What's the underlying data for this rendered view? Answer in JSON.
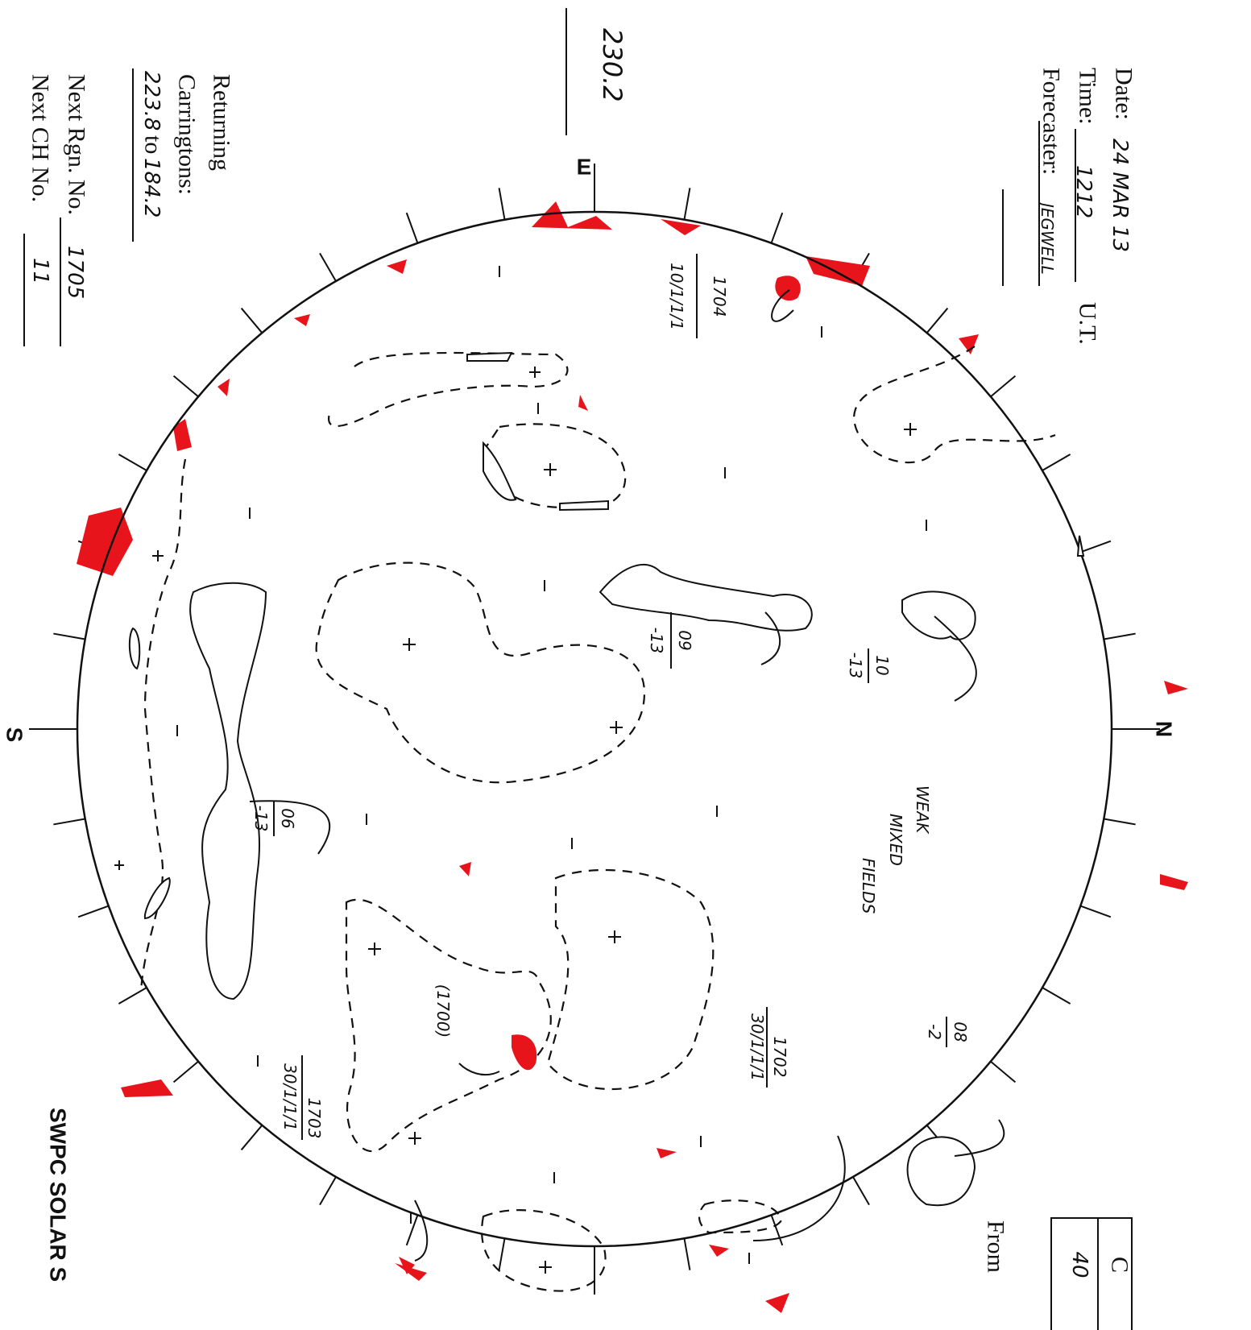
{
  "header": {
    "date_label": "Date:",
    "date": "24 MAR 13",
    "time_label": "Time:",
    "time": "1212",
    "time_unit": "U.T.",
    "forecaster_label": "Forecaster:",
    "forecaster": "JEGWELL"
  },
  "carrington": {
    "central": "230.2",
    "returning_label": "Returning",
    "carringtons_label": "Carringtons:",
    "from": "223.8",
    "to_label": "to",
    "to": "184.2"
  },
  "next": {
    "region_label": "Next Rgn. No.",
    "region": "1705",
    "ch_label": "Next CH No.",
    "ch": "11"
  },
  "directions": {
    "east": "E",
    "north": "N",
    "south": "S"
  },
  "footer": {
    "title": "SWPC SOLAR S",
    "from": "From"
  },
  "table": {
    "header": "C",
    "value": "40"
  },
  "annotation": [
    "WEAK",
    "MIXED",
    "FIELDS"
  ],
  "regions": [
    {
      "number": "1704",
      "class": "10/1/1/1"
    },
    {
      "number": "1702",
      "class": "30/1/1/1"
    },
    {
      "number": "1703",
      "class": "30/1/1/1"
    }
  ],
  "plage": "(1700)",
  "coronal_holes": [
    {
      "number": "09",
      "value": "-13"
    },
    {
      "number": "10",
      "value": "-13"
    },
    {
      "number": "06",
      "value": "-13"
    },
    {
      "number": "08",
      "value": "-2"
    }
  ]
}
